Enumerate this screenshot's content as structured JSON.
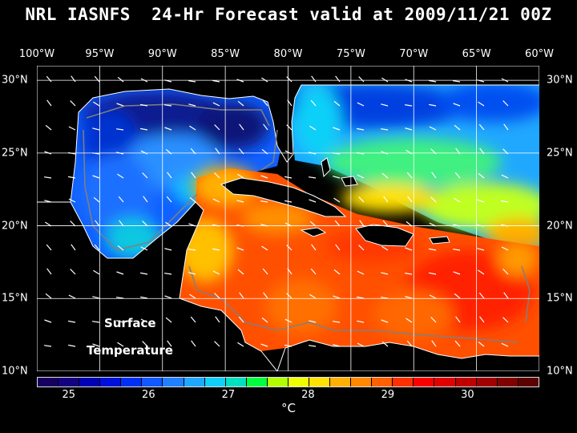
{
  "title": "NRL IASNFS  24-Hr Forecast valid at 2009/11/21 00Z",
  "axes": {
    "lon_labels": [
      "100°W",
      "95°W",
      "90°W",
      "85°W",
      "80°W",
      "75°W",
      "70°W",
      "65°W",
      "60°W"
    ],
    "lat_labels": [
      "30°N",
      "25°N",
      "20°N",
      "15°N",
      "10°N"
    ]
  },
  "map": {
    "region": "Gulf of Mexico and Caribbean Sea",
    "lon_range": [
      -100,
      -60
    ],
    "lat_range": [
      10,
      31
    ],
    "field_label_line1": "Surface",
    "field_label_line2": "Temperature",
    "land_color": "#000000",
    "coast_color": "#ffffff",
    "contour_color": "#808080",
    "grid_color": "#ffffff"
  },
  "colorbar": {
    "colors": [
      "#160060",
      "#140080",
      "#0000b4",
      "#0010dc",
      "#0030f8",
      "#1058ff",
      "#2080ff",
      "#20a8ff",
      "#10d0f8",
      "#00e0c0",
      "#00ff40",
      "#b0ff00",
      "#f0ff00",
      "#ffe000",
      "#ffb000",
      "#ff8800",
      "#ff6000",
      "#ff3000",
      "#f80000",
      "#e00000",
      "#c00000",
      "#a00000",
      "#800000",
      "#5c0000"
    ],
    "tick_values": [
      25,
      26,
      27,
      28,
      29,
      30
    ],
    "tick_labels": [
      "25",
      "26",
      "27",
      "28",
      "29",
      "30"
    ],
    "unit": "°C"
  }
}
